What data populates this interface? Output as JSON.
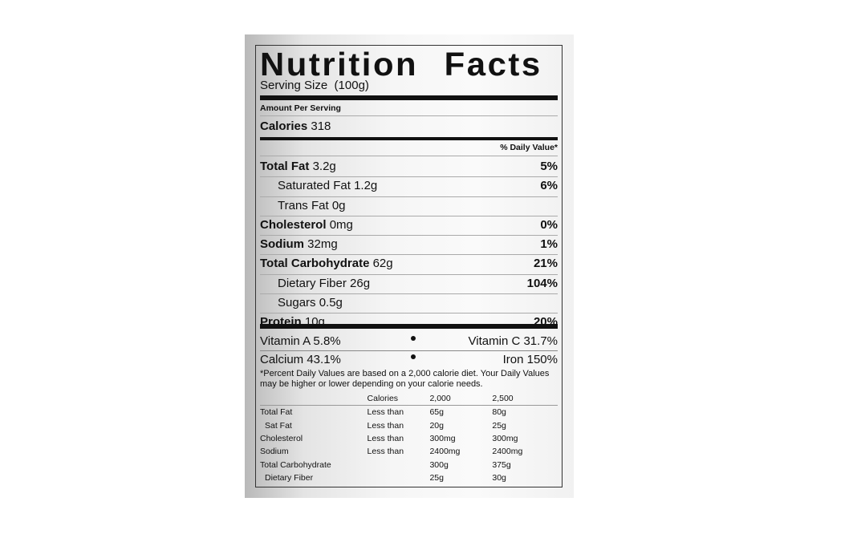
{
  "title": "Nutrition Facts",
  "serving_size": "Serving Size  (100g)",
  "amount_per_serving": "Amount Per Serving",
  "calories": {
    "label": "Calories",
    "value": "318"
  },
  "daily_value_header": "% Daily Value*",
  "nutrients": [
    {
      "label": "Total Fat",
      "amount": "3.2g",
      "dv": "5%",
      "bold": true,
      "indent": false
    },
    {
      "label": "Saturated Fat",
      "amount": "1.2g",
      "dv": "6%",
      "bold": false,
      "indent": true
    },
    {
      "label": "Trans Fat",
      "amount": "0g",
      "dv": "",
      "bold": false,
      "indent": true
    },
    {
      "label": "Cholesterol",
      "amount": "0mg",
      "dv": "0%",
      "bold": true,
      "indent": false
    },
    {
      "label": "Sodium",
      "amount": "32mg",
      "dv": "1%",
      "bold": true,
      "indent": false
    },
    {
      "label": "Total Carbohydrate",
      "amount": "62g",
      "dv": "21%",
      "bold": true,
      "indent": false
    },
    {
      "label": "Dietary Fiber",
      "amount": "26g",
      "dv": "104%",
      "bold": false,
      "indent": true
    },
    {
      "label": "Sugars",
      "amount": "0.5g",
      "dv": "",
      "bold": false,
      "indent": true
    },
    {
      "label": "Protein",
      "amount": "10g",
      "dv": "20%",
      "bold": true,
      "indent": false
    }
  ],
  "vitamins": [
    {
      "left": "Vitamin A 5.8%",
      "right": "Vitamin C 31.7%"
    },
    {
      "left": "Calcium 43.1%",
      "right": "Iron 150%"
    }
  ],
  "footnote": "*Percent Daily Values are based on a 2,000 calorie diet. Your Daily Values may be higher or lower depending on your calorie needs.",
  "reference_table": {
    "header": [
      "",
      "Calories",
      "2,000",
      "2,500"
    ],
    "rows": [
      [
        "Total Fat",
        "Less than",
        "65g",
        "80g"
      ],
      [
        "Sat Fat",
        "Less than",
        "20g",
        "25g"
      ],
      [
        "Cholesterol",
        "Less than",
        "300mg",
        "300mg"
      ],
      [
        "Sodium",
        "Less than",
        "2400mg",
        "2400mg"
      ],
      [
        "Total Carbohydrate",
        "",
        "300g",
        "375g"
      ],
      [
        "Dietary Fiber",
        "",
        "25g",
        "30g"
      ]
    ]
  }
}
